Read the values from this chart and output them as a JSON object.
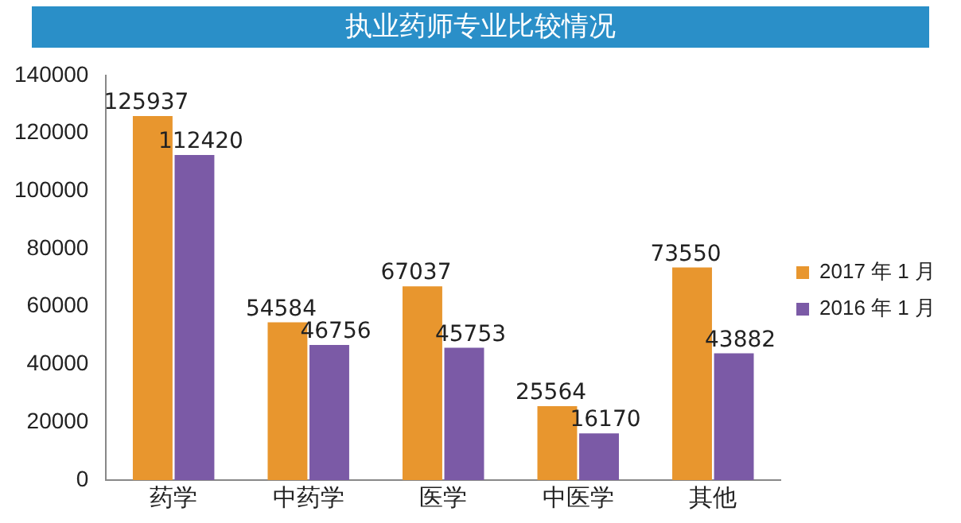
{
  "chart_data": {
    "type": "bar",
    "title": "执业药师专业比较情况",
    "categories": [
      "药学",
      "中药学",
      "医学",
      "中医学",
      "其他"
    ],
    "series": [
      {
        "name": "2017 年 1 月",
        "color": "#e8962e",
        "values": [
          125937,
          54584,
          67037,
          25564,
          73550
        ]
      },
      {
        "name": "2016 年 1 月",
        "color": "#7b5aa6",
        "values": [
          112420,
          46756,
          45753,
          16170,
          43882
        ]
      }
    ],
    "ylim": [
      0,
      140000
    ],
    "yticks": [
      0,
      20000,
      40000,
      60000,
      80000,
      100000,
      120000,
      140000
    ],
    "grid": false,
    "legend": "right",
    "data_labels": true
  }
}
